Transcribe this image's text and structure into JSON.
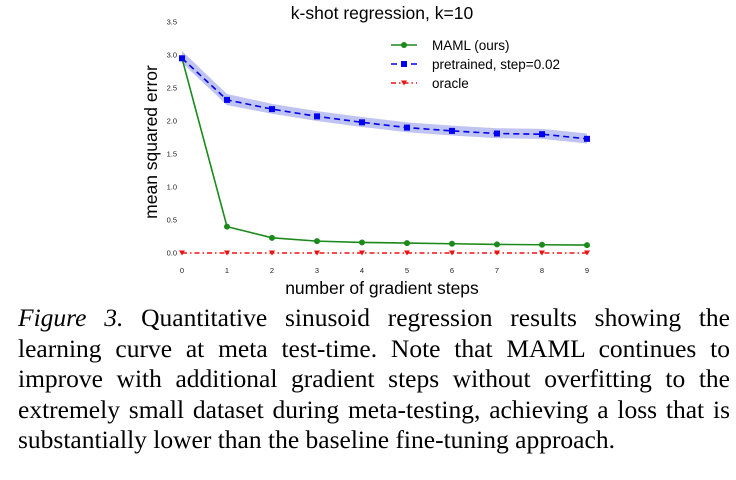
{
  "chart_data": {
    "type": "line",
    "title": "k-shot regression, k=10",
    "xlabel": "number of gradient steps",
    "ylabel": "mean squared error",
    "x": [
      0,
      1,
      2,
      3,
      4,
      5,
      6,
      7,
      8,
      9
    ],
    "xlim": [
      0,
      9
    ],
    "ylim": [
      0,
      3.5
    ],
    "xticks": [
      "0",
      "1",
      "2",
      "3",
      "4",
      "5",
      "6",
      "7",
      "8",
      "9"
    ],
    "yticks": [
      "0.0",
      "0.5",
      "1.0",
      "1.5",
      "2.0",
      "2.5",
      "3.0",
      "3.5"
    ],
    "ytick_values": [
      0,
      0.5,
      1.0,
      1.5,
      2.0,
      2.5,
      3.0,
      3.5
    ],
    "legend_position": "top-right",
    "series": [
      {
        "name": "MAML (ours)",
        "color": "#1a8a1a",
        "style": "solid",
        "marker": "circle",
        "values": [
          2.95,
          0.4,
          0.23,
          0.18,
          0.16,
          0.15,
          0.14,
          0.13,
          0.125,
          0.12
        ]
      },
      {
        "name": "pretrained, step=0.02",
        "color": "#0000ee",
        "style": "dashed",
        "marker": "square",
        "values": [
          2.95,
          2.32,
          2.18,
          2.07,
          1.98,
          1.9,
          1.85,
          1.81,
          1.8,
          1.73
        ],
        "band_low": [
          2.88,
          2.24,
          2.11,
          2.0,
          1.91,
          1.83,
          1.78,
          1.74,
          1.73,
          1.66
        ],
        "band_high": [
          3.06,
          2.41,
          2.26,
          2.15,
          2.06,
          1.98,
          1.93,
          1.89,
          1.88,
          1.81
        ],
        "band_color": "#aab0ee"
      },
      {
        "name": "oracle",
        "color": "#ee1111",
        "style": "dashdot",
        "marker": "triangle-down",
        "values": [
          0,
          0,
          0,
          0,
          0,
          0,
          0,
          0,
          0,
          0
        ]
      }
    ]
  },
  "caption": {
    "label": "Figure 3.",
    "text": "Quantitative sinusoid regression results showing the learning curve at meta test-time. Note that MAML continues to improve with additional gradient steps without overfitting to the extremely small dataset during meta-testing, achieving a loss that is substantially lower than the baseline fine-tuning approach."
  }
}
